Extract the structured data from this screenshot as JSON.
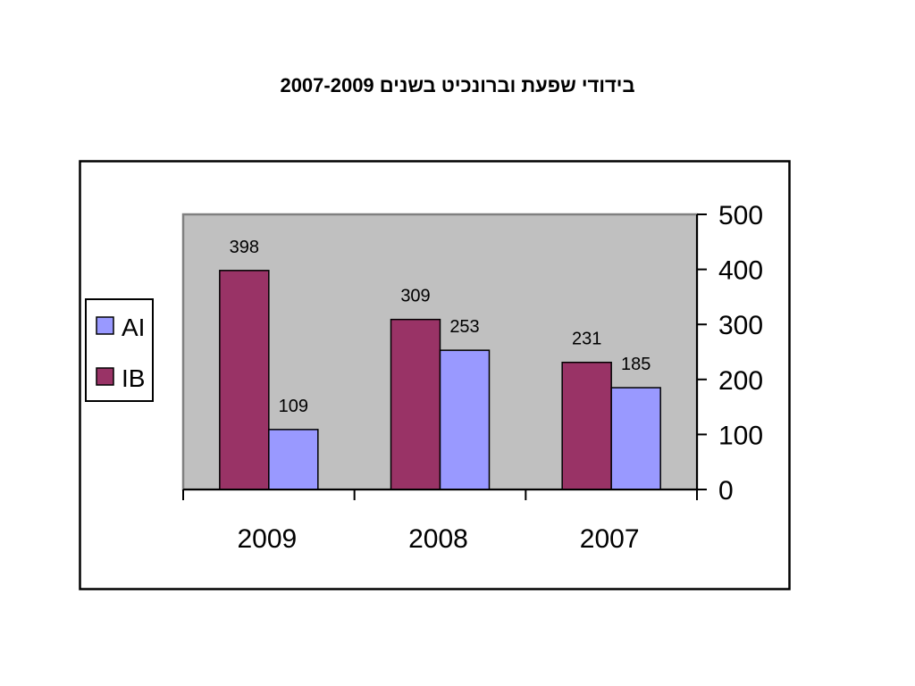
{
  "chart_data": {
    "type": "bar",
    "title": "בידודי שפעת וברונכיט בשנים 2007-2009",
    "categories": [
      "2009",
      "2008",
      "2007"
    ],
    "series": [
      {
        "name": "IB",
        "color": "#993366",
        "values": [
          398,
          309,
          231
        ]
      },
      {
        "name": "AI",
        "color": "#9999FF",
        "values": [
          109,
          253,
          185
        ]
      }
    ],
    "ylim": [
      0,
      500
    ],
    "yticks": [
      0,
      100,
      200,
      300,
      400,
      500
    ],
    "y_axis_position": "right",
    "legend": "left",
    "data_labels": true,
    "grid": false,
    "plot_background": "#C0C0C0"
  }
}
